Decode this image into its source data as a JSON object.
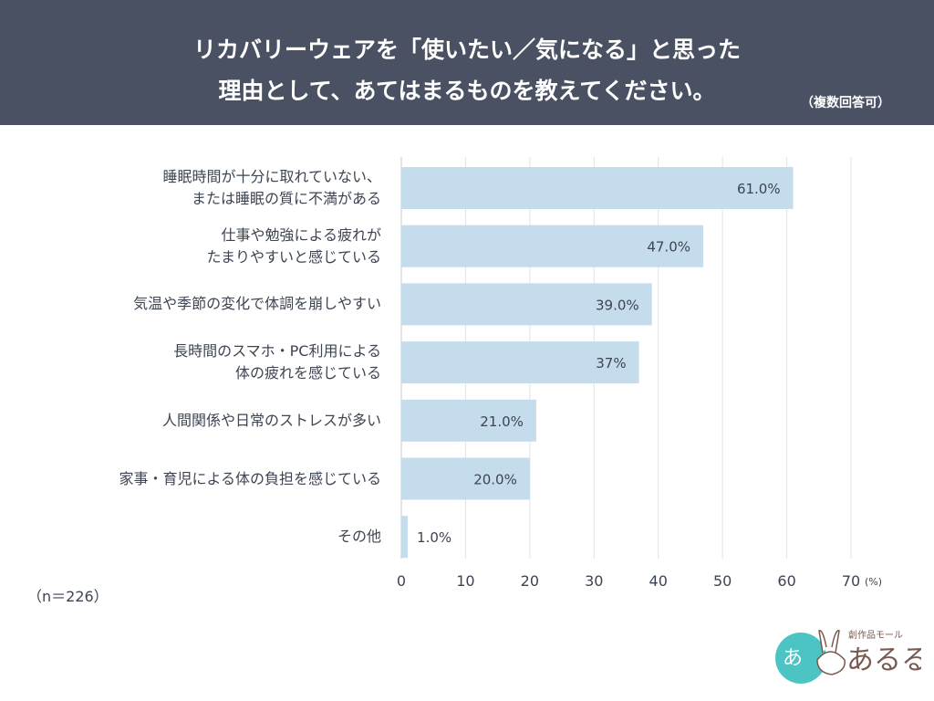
{
  "header": {
    "title_line1": "リカバリーウェアを「使いたい／気になる」と思った",
    "title_line2": "理由として、あてはまるものを教えてください。",
    "note": "（複数回答可）"
  },
  "sample": "（n＝226）",
  "logo": {
    "text": "創作品モール あるる",
    "brand": "あるる"
  },
  "colors": {
    "header": "#4a5162",
    "bar": "#c5dced",
    "grid": "#dcdde0",
    "text": "#3d4452"
  },
  "chart_data": {
    "type": "bar",
    "orientation": "horizontal",
    "categories": [
      "睡眠時間が十分に取れていない、\nまたは睡眠の質に不満がある",
      "仕事や勉強による疲れが\nたまりやすいと感じている",
      "気温や季節の変化で体調を崩しやすい",
      "長時間のスマホ・PC利用による\n体の疲れを感じている",
      "人間関係や日常のストレスが多い",
      "家事・育児による体の負担を感じている",
      "その他"
    ],
    "values": [
      61.0,
      47.0,
      39.0,
      37,
      21.0,
      20.0,
      1.0
    ],
    "data_labels": [
      "61.0%",
      "47.0%",
      "39.0%",
      "37%",
      "21.0%",
      "20.0%",
      "1.0%"
    ],
    "xlim": [
      0,
      70
    ],
    "xticks": [
      "0",
      "10",
      "20",
      "30",
      "40",
      "50",
      "60",
      "70"
    ],
    "xunit": "(%)",
    "grid": true
  }
}
